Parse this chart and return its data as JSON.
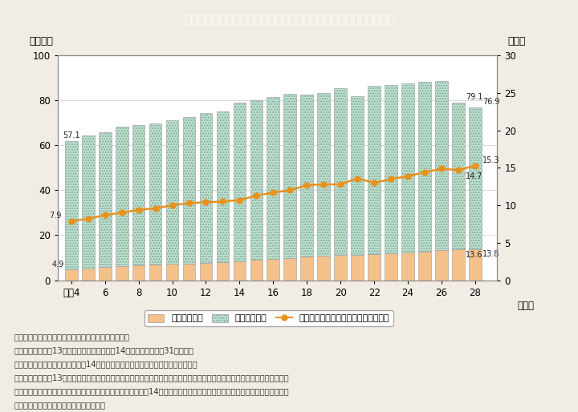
{
  "title": "Ｉ－５－６図　女性研究者数及び研究者に占める女性の割合の推移",
  "title_bg": "#2baabe",
  "ylabel_left": "（万人）",
  "ylabel_right": "（％）",
  "xlabel": "（年）",
  "years": [
    4,
    5,
    6,
    7,
    8,
    9,
    10,
    11,
    12,
    13,
    14,
    15,
    16,
    17,
    18,
    19,
    20,
    21,
    22,
    23,
    24,
    25,
    26,
    27,
    28
  ],
  "x_labels": [
    "平成4",
    "6",
    "8",
    "10",
    "12",
    "14",
    "16",
    "18",
    "20",
    "22",
    "24",
    "26",
    "28"
  ],
  "x_label_years": [
    4,
    6,
    8,
    10,
    12,
    14,
    16,
    18,
    20,
    22,
    24,
    26,
    28
  ],
  "female_researchers": [
    4.9,
    5.3,
    5.8,
    6.2,
    6.5,
    6.8,
    7.2,
    7.5,
    7.8,
    8.0,
    8.5,
    9.1,
    9.6,
    10.0,
    10.5,
    10.8,
    11.1,
    11.3,
    11.5,
    11.9,
    12.3,
    12.8,
    13.3,
    13.6,
    13.8
  ],
  "male_researchers": [
    57.1,
    59.2,
    60.2,
    62.0,
    62.5,
    63.0,
    64.0,
    65.0,
    66.5,
    67.2,
    70.5,
    71.0,
    72.1,
    73.0,
    72.0,
    72.5,
    74.5,
    70.5,
    75.0,
    75.0,
    75.5,
    75.5,
    75.5,
    65.5,
    63.1
  ],
  "female_ratio": [
    7.9,
    8.2,
    8.7,
    9.0,
    9.4,
    9.6,
    10.0,
    10.3,
    10.4,
    10.5,
    10.7,
    11.3,
    11.7,
    12.0,
    12.7,
    12.8,
    12.8,
    13.6,
    13.0,
    13.5,
    13.9,
    14.4,
    14.9,
    14.7,
    15.3
  ],
  "bar_female_color": "#f5c18a",
  "bar_male_color_face": "#b5e8d0",
  "line_color": "#e8921e",
  "ylim_left": [
    0,
    100
  ],
  "ylim_right": [
    0,
    30
  ],
  "yticks_left": [
    0,
    20,
    40,
    60,
    80,
    100
  ],
  "yticks_right": [
    0,
    5,
    10,
    15,
    20,
    25,
    30
  ],
  "background_color": "#f2ede4",
  "plot_bg": "#ffffff",
  "note_lines": [
    "（備考）１．総務省「科学技術研究調査」より作成。",
    "　　　　２．平成13年までは各年４月１日，14年以降は各年３月31日現在。",
    "　　　　３．平成７年，９年及び14年に調査対象や標本設計等が変更されている。",
    "　　　　４．平成13年までの研究者数は，企業及び非営利団体・公的機関については実際に研究関係業務に従事した割合で按",
    "　　　　　　分して算出した人数とし，大学等は実数を計上。14年以降は全機関について実数で計上されていることから，時",
    "　　　　　　系列比較には留意を要する。"
  ],
  "legend_female": "女性研究者数",
  "legend_male": "男性研究者数",
  "legend_ratio": "研究者に占める女性の割合（右目盛）"
}
